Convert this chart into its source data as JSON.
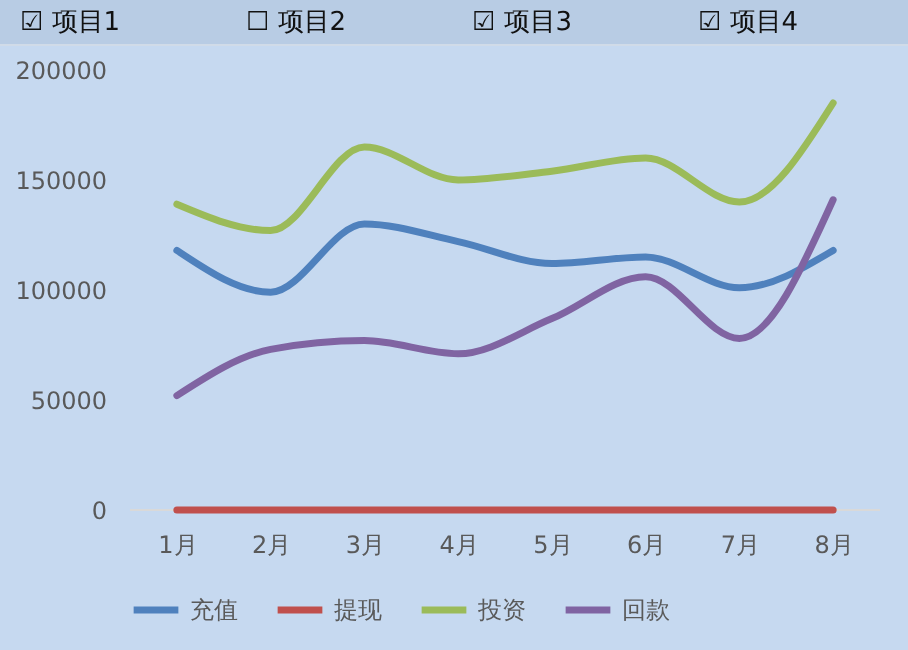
{
  "chart_data": {
    "type": "line",
    "categories": [
      "1月",
      "2月",
      "3月",
      "4月",
      "5月",
      "6月",
      "7月",
      "8月"
    ],
    "series": [
      {
        "name": "充值",
        "color": "#4f81bd",
        "values": [
          118000,
          99000,
          130000,
          122000,
          112000,
          115000,
          101000,
          118000
        ]
      },
      {
        "name": "提现",
        "color": "#c0504d",
        "values": [
          0,
          0,
          0,
          0,
          0,
          0,
          0,
          0
        ]
      },
      {
        "name": "投资",
        "color": "#9bbb59",
        "values": [
          139000,
          127000,
          165000,
          150000,
          154000,
          160000,
          140000,
          185000
        ]
      },
      {
        "name": "回款",
        "color": "#8064a2",
        "values": [
          52000,
          73000,
          77000,
          71000,
          87000,
          106000,
          78000,
          141000
        ]
      }
    ],
    "ylim": [
      0,
      200000
    ],
    "yticks": [
      0,
      50000,
      100000,
      150000,
      200000
    ],
    "grid": false,
    "legend": "bottom",
    "marker": "none",
    "line_style": "solid",
    "annotations": [
      "☑ 项目1",
      "☐ 项目2",
      "☑ 项目3",
      "☑ 项目4"
    ]
  }
}
